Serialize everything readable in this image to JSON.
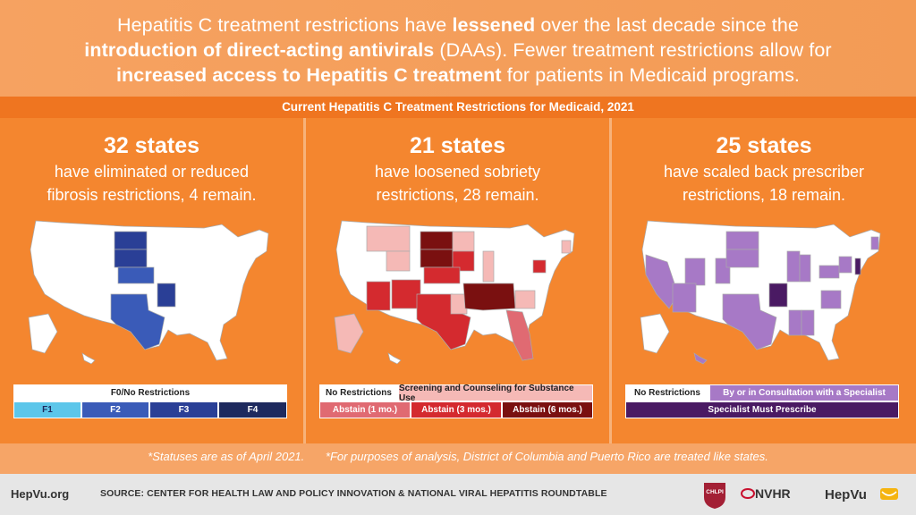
{
  "header": {
    "line1_a": "Hepatitis C treatment restrictions have ",
    "line1_b": "lessened",
    "line1_c": " over the last decade since the",
    "line2_a": "introduction of direct-acting antivirals",
    "line2_b": " (DAAs). Fewer treatment restrictions allow for",
    "line3_a": "increased access to Hepatitis C treatment",
    "line3_b": " for patients in Medicaid programs."
  },
  "band_title": "Current Hepatitis C Treatment Restrictions for Medicaid, 2021",
  "panels": [
    {
      "count": "32 states",
      "desc1": "have eliminated or reduced",
      "desc2": "fibrosis restrictions, 4 remain.",
      "legend": {
        "top": "F0/No Restrictions",
        "items": [
          "F1",
          "F2",
          "F3",
          "F4"
        ]
      },
      "colors": [
        "#ffffff",
        "#5cc6ea",
        "#3a5bb8",
        "#2a3f96",
        "#1e2a5e"
      ]
    },
    {
      "count": "21 states",
      "desc1": "have loosened sobriety",
      "desc2": "restrictions, 28 remain.",
      "legend": {
        "no": "No Restrictions",
        "screening": "Screening and Counseling for Substance Use",
        "a1": "Abstain (1 mo.)",
        "a3": "Abstain (3 mos.)",
        "a6": "Abstain (6 mos.)"
      },
      "colors": [
        "#ffffff",
        "#f5b9b6",
        "#e06a72",
        "#d42a2f",
        "#7a1010"
      ]
    },
    {
      "count": "25 states",
      "desc1": "have scaled back prescriber",
      "desc2": "restrictions, 18 remain.",
      "legend": {
        "no": "No Restrictions",
        "consult": "By or in Consultation with a Specialist",
        "must": "Specialist Must Prescribe"
      },
      "colors": [
        "#ffffff",
        "#a779c6",
        "#4a1a63"
      ]
    }
  ],
  "footnotes": {
    "left": "*Statuses are as of April 2021.",
    "right": "*For purposes of analysis, District of Columbia and Puerto Rico are treated like states."
  },
  "footer": {
    "site": "HepVu.org",
    "source": "SOURCE: CENTER FOR HEALTH LAW AND POLICY INNOVATION & NATIONAL VIRAL HEPATITIS ROUNDTABLE",
    "logo1": "CHLPI",
    "logo2": "NVHR",
    "logo3": "HepVu"
  }
}
